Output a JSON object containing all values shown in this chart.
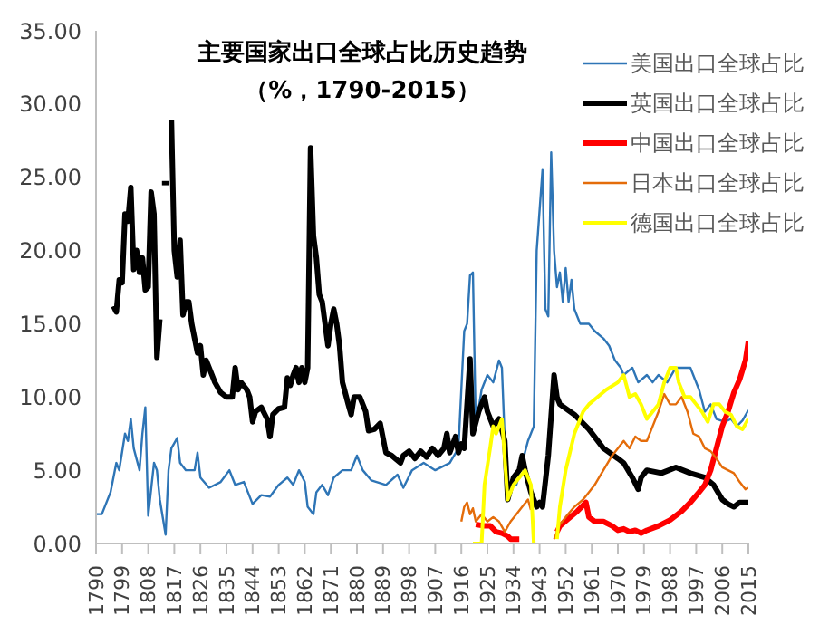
{
  "chart_data": {
    "type": "line",
    "title": "主要国家出口全球占比历史趋势",
    "subtitle": "（%，1790-2015）",
    "xlim": [
      1790,
      2015
    ],
    "xticks": [
      1790,
      1799,
      1808,
      1817,
      1826,
      1835,
      1844,
      1853,
      1862,
      1871,
      1880,
      1889,
      1898,
      1907,
      1916,
      1925,
      1934,
      1943,
      1952,
      1961,
      1970,
      1979,
      1988,
      1997,
      2006,
      2015
    ],
    "ylim": [
      0,
      35
    ],
    "yticks": [
      {
        "value": 0,
        "label": "0.00"
      },
      {
        "value": 5,
        "label": "5.00"
      },
      {
        "value": 10,
        "label": "10.00"
      },
      {
        "value": 15,
        "label": "15.00"
      },
      {
        "value": 20,
        "label": "20.00"
      },
      {
        "value": 25,
        "label": "25.00"
      },
      {
        "value": 30,
        "label": "30.00"
      },
      {
        "value": 35,
        "label": "35.00"
      }
    ],
    "legend": "top right",
    "series": [
      {
        "name": "美国出口全球占比",
        "color": "#2e75b6",
        "x": [
          1790,
          1792,
          1795,
          1797,
          1798,
          1800,
          1801,
          1802,
          1803,
          1805,
          1806,
          1807,
          1808,
          1810,
          1811,
          1812,
          1814,
          1815,
          1816,
          1818,
          1819,
          1821,
          1824,
          1825,
          1826,
          1829,
          1833,
          1836,
          1838,
          1841,
          1844,
          1847,
          1850,
          1853,
          1856,
          1858,
          1860,
          1862,
          1863,
          1865,
          1866,
          1868,
          1870,
          1872,
          1875,
          1878,
          1880,
          1882,
          1885,
          1890,
          1894,
          1896,
          1899,
          1903,
          1907,
          1912,
          1915,
          1917,
          1918,
          1919,
          1920,
          1921,
          1923,
          1925,
          1927,
          1929,
          1930,
          1931,
          1932,
          1935,
          1937,
          1939,
          1941,
          1942,
          1944,
          1945,
          1946,
          1947,
          1948,
          1949,
          1950,
          1951,
          1952,
          1953,
          1954,
          1955,
          1957,
          1960,
          1962,
          1965,
          1967,
          1969,
          1971,
          1972,
          1975,
          1977,
          1980,
          1982,
          1984,
          1987,
          1990,
          1993,
          1995,
          1998,
          2000,
          2002,
          2004,
          2007,
          2009,
          2011,
          2013,
          2015
        ],
        "values": [
          2.0,
          2.0,
          3.5,
          5.5,
          5.0,
          7.5,
          7.0,
          8.5,
          6.5,
          5.0,
          7.5,
          9.3,
          1.9,
          5.5,
          5.0,
          3.0,
          0.6,
          5.0,
          6.5,
          7.2,
          5.5,
          5.0,
          5.0,
          6.2,
          4.5,
          3.8,
          4.2,
          5.0,
          4.0,
          4.2,
          2.7,
          3.3,
          3.2,
          4.0,
          4.5,
          4.0,
          5.0,
          4.2,
          2.5,
          2.0,
          3.5,
          4.0,
          3.3,
          4.5,
          5.0,
          5.0,
          6.0,
          5.0,
          4.3,
          4.0,
          4.7,
          3.8,
          5.0,
          5.5,
          5.0,
          5.5,
          6.5,
          14.5,
          15.0,
          18.3,
          18.5,
          8.0,
          10.5,
          11.5,
          11.0,
          12.5,
          12.0,
          7.0,
          4.0,
          4.0,
          5.5,
          7.0,
          8.0,
          20.0,
          25.5,
          16.0,
          15.5,
          26.7,
          20.0,
          17.5,
          18.5,
          16.5,
          18.8,
          16.5,
          18.0,
          16.0,
          15.0,
          15.0,
          14.5,
          14.0,
          13.5,
          12.5,
          12.0,
          11.5,
          12.0,
          11.0,
          11.5,
          11.0,
          11.5,
          11.0,
          12.0,
          12.0,
          12.0,
          10.5,
          9.0,
          9.5,
          8.5,
          8.3,
          8.5,
          8.0,
          8.4,
          9.1
        ]
      },
      {
        "name": "英国出口全球占比",
        "color": "#000000",
        "x": [
          1796,
          1797,
          1798,
          1799,
          1800,
          1801,
          1802,
          1803,
          1804,
          1805,
          1806,
          1807,
          1808,
          1809,
          1810,
          1811,
          1812,
          1813,
          1814,
          1815,
          1816,
          1817,
          1818,
          1819,
          1820,
          1821,
          1822,
          1823,
          1824,
          1825,
          1826,
          1827,
          1828,
          1829,
          1831,
          1833,
          1835,
          1837,
          1838,
          1839,
          1840,
          1842,
          1843,
          1844,
          1845,
          1847,
          1849,
          1850,
          1851,
          1853,
          1855,
          1856,
          1857,
          1858,
          1859,
          1860,
          1861,
          1862,
          1863,
          1864,
          1865,
          1866,
          1867,
          1868,
          1870,
          1871,
          1872,
          1873,
          1874,
          1875,
          1877,
          1878,
          1879,
          1881,
          1883,
          1884,
          1886,
          1888,
          1890,
          1892,
          1895,
          1896,
          1898,
          1900,
          1902,
          1904,
          1906,
          1908,
          1910,
          1911,
          1912,
          1914,
          1915,
          1916,
          1917,
          1919,
          1920,
          1922,
          1924,
          1925,
          1927,
          1929,
          1931,
          1932,
          1934,
          1936,
          1937,
          1938,
          1940,
          1942,
          1943,
          1944,
          1946,
          1948,
          1949,
          1950,
          1955,
          1960,
          1965,
          1970,
          1972,
          1975,
          1977,
          1978,
          1980,
          1985,
          1990,
          1995,
          2000,
          2003,
          2006,
          2008,
          2010,
          2012,
          2015
        ],
        "values": [
          16.2,
          15.8,
          18.0,
          17.8,
          22.5,
          22.0,
          24.3,
          18.7,
          20.0,
          18.5,
          19.5,
          17.3,
          17.5,
          24.0,
          22.5,
          12.7,
          15.3,
          null,
          24.6,
          null,
          28.9,
          20.0,
          18.2,
          20.7,
          15.6,
          16.5,
          16.5,
          15.0,
          14.0,
          13.0,
          13.5,
          11.5,
          12.5,
          12.0,
          11.0,
          10.3,
          10.0,
          10.0,
          12.0,
          10.5,
          11.0,
          10.5,
          10.0,
          8.3,
          9.0,
          9.3,
          8.5,
          7.3,
          8.8,
          9.2,
          9.3,
          11.3,
          10.8,
          11.5,
          12.0,
          11.0,
          12.0,
          11.0,
          12.0,
          27.0,
          21.0,
          19.5,
          17.0,
          16.5,
          13.5,
          15.0,
          16.0,
          15.0,
          13.5,
          11.0,
          9.5,
          8.8,
          10.0,
          10.0,
          9.0,
          7.7,
          7.8,
          8.2,
          6.2,
          6.0,
          5.5,
          6.0,
          6.3,
          5.8,
          6.3,
          5.9,
          6.5,
          6.0,
          6.5,
          7.5,
          6.2,
          7.3,
          6.2,
          6.8,
          6.5,
          12.6,
          7.5,
          9.0,
          10.0,
          9.0,
          8.0,
          8.5,
          7.0,
          3.0,
          4.5,
          5.0,
          6.0,
          5.0,
          3.5,
          2.5,
          2.8,
          2.5,
          6.0,
          11.5,
          10.0,
          9.5,
          8.8,
          7.8,
          6.5,
          5.8,
          5.5,
          4.5,
          3.7,
          4.5,
          5.0,
          4.8,
          5.2,
          4.8,
          4.5,
          4.0,
          3.0,
          2.7,
          2.5,
          2.8,
          2.8
        ]
      },
      {
        "name": "中国出口全球占比",
        "color": "#ff0000",
        "x": [
          1921,
          1924,
          1926,
          1928,
          1930,
          1932,
          1933,
          1936,
          1942,
          1949,
          1950,
          1953,
          1956,
          1959,
          1960,
          1962,
          1965,
          1968,
          1970,
          1972,
          1974,
          1976,
          1978,
          1980,
          1984,
          1988,
          1992,
          1995,
          1998,
          2000,
          2002,
          2004,
          2006,
          2008,
          2010,
          2012,
          2014,
          2015
        ],
        "values": [
          1.3,
          1.2,
          1.2,
          0.8,
          0.7,
          0.5,
          0.3,
          0.3,
          null,
          0.8,
          1.2,
          1.7,
          2.2,
          2.8,
          1.8,
          1.5,
          1.5,
          1.2,
          0.9,
          1.0,
          0.8,
          0.9,
          0.7,
          0.9,
          1.2,
          1.6,
          2.2,
          2.8,
          3.5,
          4.0,
          5.0,
          6.5,
          8.0,
          9.0,
          10.3,
          11.2,
          12.5,
          13.8
        ]
      },
      {
        "name": "日本出口全球占比",
        "color": "#e46c0a",
        "x": [
          1916,
          1917,
          1918,
          1919,
          1920,
          1921,
          1923,
          1925,
          1927,
          1929,
          1931,
          1933,
          1935,
          1937,
          1939,
          1940,
          1944,
          1948,
          1950,
          1952,
          1955,
          1958,
          1960,
          1962,
          1965,
          1968,
          1970,
          1972,
          1974,
          1976,
          1978,
          1980,
          1982,
          1984,
          1986,
          1988,
          1990,
          1992,
          1994,
          1996,
          1998,
          2000,
          2002,
          2004,
          2006,
          2008,
          2010,
          2012,
          2014,
          2015
        ],
        "values": [
          1.5,
          2.5,
          2.8,
          2.0,
          2.4,
          1.5,
          2.0,
          1.5,
          1.8,
          1.5,
          0.8,
          1.5,
          2.0,
          2.5,
          3.0,
          2.3,
          null,
          0.3,
          1.3,
          1.8,
          2.5,
          3.0,
          3.5,
          4.0,
          5.0,
          6.0,
          6.5,
          7.0,
          6.5,
          7.3,
          7.0,
          7.0,
          8.0,
          9.0,
          10.2,
          9.5,
          9.5,
          10.0,
          9.0,
          7.5,
          7.3,
          6.5,
          6.3,
          5.8,
          5.2,
          5.0,
          4.8,
          4.2,
          3.7,
          3.8
        ]
      },
      {
        "name": "德国出口全球占比",
        "color": "#ffff00",
        "x": [
          1920,
          1923,
          1924,
          1926,
          1927,
          1928,
          1930,
          1932,
          1934,
          1936,
          1938,
          1940,
          1941,
          1945,
          1949,
          1950,
          1952,
          1955,
          1958,
          1960,
          1963,
          1966,
          1970,
          1972,
          1974,
          1976,
          1978,
          1980,
          1982,
          1984,
          1986,
          1988,
          1990,
          1991,
          1993,
          1995,
          1997,
          1999,
          2001,
          2003,
          2005,
          2007,
          2009,
          2011,
          2013,
          2015
        ],
        "values": [
          0.0,
          0.0,
          4.0,
          6.6,
          8.0,
          7.5,
          8.5,
          3.0,
          4.0,
          4.5,
          5.0,
          4.0,
          0.0,
          null,
          0.3,
          2.5,
          5.0,
          7.5,
          9.0,
          9.5,
          10.0,
          10.5,
          11.0,
          11.5,
          10.0,
          10.2,
          9.5,
          8.5,
          9.0,
          9.5,
          11.0,
          12.0,
          12.0,
          11.0,
          10.0,
          10.0,
          9.5,
          9.0,
          8.3,
          9.5,
          9.5,
          9.0,
          8.8,
          8.0,
          7.8,
          8.5
        ]
      }
    ]
  }
}
